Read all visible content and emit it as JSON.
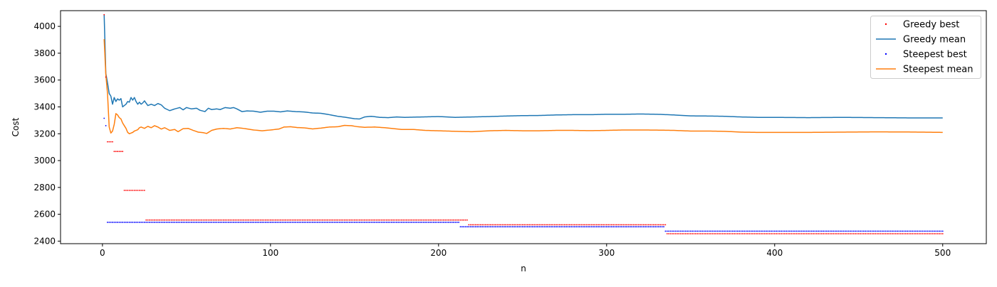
{
  "chart_data": {
    "type": "line",
    "title": "",
    "xlabel": "n",
    "ylabel": "Cost",
    "xlim": [
      -24.95,
      525.95
    ],
    "ylim": [
      2381,
      4117
    ],
    "xticks": [
      0,
      100,
      200,
      300,
      400,
      500
    ],
    "yticks": [
      2400,
      2600,
      2800,
      3000,
      3200,
      3400,
      3600,
      3800,
      4000
    ],
    "grid": false,
    "legend_position": "top-right",
    "x": {
      "start": 1,
      "end": 500,
      "step": 1
    },
    "series": [
      {
        "name": "Greedy best",
        "kind": "scatter",
        "color": "#ff0000",
        "steps": [
          {
            "from": 1,
            "to": 1,
            "y": 4087
          },
          {
            "from": 2,
            "to": 2,
            "y": 3622
          },
          {
            "from": 3,
            "to": 6,
            "y": 3140
          },
          {
            "from": 7,
            "to": 12,
            "y": 3068
          },
          {
            "from": 13,
            "to": 25,
            "y": 2778
          },
          {
            "from": 26,
            "to": 217,
            "y": 2557
          },
          {
            "from": 218,
            "to": 335,
            "y": 2522
          },
          {
            "from": 336,
            "to": 500,
            "y": 2455
          }
        ]
      },
      {
        "name": "Greedy mean",
        "kind": "line",
        "color": "#1f77b4",
        "anchors": [
          [
            1,
            4087
          ],
          [
            2,
            3650
          ],
          [
            3,
            3580
          ],
          [
            4,
            3500
          ],
          [
            5,
            3480
          ],
          [
            6,
            3420
          ],
          [
            7,
            3470
          ],
          [
            8,
            3440
          ],
          [
            9,
            3460
          ],
          [
            10,
            3450
          ],
          [
            11,
            3462
          ],
          [
            12,
            3400
          ],
          [
            14,
            3420
          ],
          [
            15,
            3440
          ],
          [
            16,
            3435
          ],
          [
            17,
            3470
          ],
          [
            18,
            3450
          ],
          [
            19,
            3470
          ],
          [
            20,
            3440
          ],
          [
            21,
            3420
          ],
          [
            22,
            3435
          ],
          [
            23,
            3420
          ],
          [
            24,
            3430
          ],
          [
            25,
            3445
          ],
          [
            27,
            3410
          ],
          [
            29,
            3420
          ],
          [
            31,
            3410
          ],
          [
            33,
            3425
          ],
          [
            35,
            3415
          ],
          [
            37,
            3390
          ],
          [
            40,
            3372
          ],
          [
            43,
            3385
          ],
          [
            46,
            3395
          ],
          [
            48,
            3378
          ],
          [
            50,
            3395
          ],
          [
            53,
            3385
          ],
          [
            56,
            3390
          ],
          [
            58,
            3375
          ],
          [
            61,
            3365
          ],
          [
            63,
            3390
          ],
          [
            65,
            3380
          ],
          [
            68,
            3385
          ],
          [
            70,
            3380
          ],
          [
            73,
            3395
          ],
          [
            76,
            3390
          ],
          [
            78,
            3395
          ],
          [
            80,
            3385
          ],
          [
            83,
            3365
          ],
          [
            86,
            3370
          ],
          [
            90,
            3368
          ],
          [
            94,
            3360
          ],
          [
            98,
            3368
          ],
          [
            102,
            3368
          ],
          [
            106,
            3363
          ],
          [
            110,
            3370
          ],
          [
            115,
            3365
          ],
          [
            120,
            3362
          ],
          [
            125,
            3355
          ],
          [
            130,
            3352
          ],
          [
            135,
            3342
          ],
          [
            140,
            3330
          ],
          [
            145,
            3322
          ],
          [
            150,
            3312
          ],
          [
            153,
            3310
          ],
          [
            156,
            3325
          ],
          [
            160,
            3330
          ],
          [
            165,
            3322
          ],
          [
            170,
            3320
          ],
          [
            175,
            3325
          ],
          [
            180,
            3322
          ],
          [
            190,
            3325
          ],
          [
            200,
            3328
          ],
          [
            210,
            3322
          ],
          [
            220,
            3325
          ],
          [
            230,
            3328
          ],
          [
            240,
            3332
          ],
          [
            250,
            3335
          ],
          [
            260,
            3336
          ],
          [
            270,
            3340
          ],
          [
            280,
            3342
          ],
          [
            290,
            3342
          ],
          [
            300,
            3345
          ],
          [
            310,
            3345
          ],
          [
            320,
            3347
          ],
          [
            330,
            3345
          ],
          [
            340,
            3340
          ],
          [
            350,
            3333
          ],
          [
            360,
            3332
          ],
          [
            370,
            3330
          ],
          [
            380,
            3325
          ],
          [
            390,
            3322
          ],
          [
            400,
            3322
          ],
          [
            420,
            3320
          ],
          [
            440,
            3322
          ],
          [
            460,
            3320
          ],
          [
            480,
            3318
          ],
          [
            500,
            3318
          ]
        ]
      },
      {
        "name": "Steepest best",
        "kind": "scatter",
        "color": "#0000ff",
        "steps": [
          {
            "from": 1,
            "to": 1,
            "y": 3315
          },
          {
            "from": 2,
            "to": 2,
            "y": 3260
          },
          {
            "from": 3,
            "to": 212,
            "y": 2540
          },
          {
            "from": 213,
            "to": 334,
            "y": 2507
          },
          {
            "from": 335,
            "to": 500,
            "y": 2474
          }
        ]
      },
      {
        "name": "Steepest mean",
        "kind": "line",
        "color": "#ff7f0e",
        "anchors": [
          [
            1,
            3905
          ],
          [
            2,
            3640
          ],
          [
            3,
            3500
          ],
          [
            4,
            3250
          ],
          [
            5,
            3205
          ],
          [
            6,
            3220
          ],
          [
            7,
            3270
          ],
          [
            8,
            3350
          ],
          [
            9,
            3340
          ],
          [
            10,
            3320
          ],
          [
            11,
            3310
          ],
          [
            12,
            3280
          ],
          [
            13,
            3260
          ],
          [
            14,
            3240
          ],
          [
            15,
            3210
          ],
          [
            16,
            3200
          ],
          [
            17,
            3205
          ],
          [
            18,
            3210
          ],
          [
            19,
            3220
          ],
          [
            20,
            3225
          ],
          [
            21,
            3230
          ],
          [
            22,
            3245
          ],
          [
            23,
            3250
          ],
          [
            24,
            3245
          ],
          [
            25,
            3240
          ],
          [
            27,
            3255
          ],
          [
            29,
            3245
          ],
          [
            31,
            3260
          ],
          [
            33,
            3250
          ],
          [
            35,
            3235
          ],
          [
            37,
            3245
          ],
          [
            40,
            3225
          ],
          [
            43,
            3232
          ],
          [
            45,
            3215
          ],
          [
            48,
            3238
          ],
          [
            51,
            3240
          ],
          [
            54,
            3225
          ],
          [
            57,
            3212
          ],
          [
            60,
            3208
          ],
          [
            62,
            3202
          ],
          [
            65,
            3225
          ],
          [
            68,
            3235
          ],
          [
            72,
            3240
          ],
          [
            76,
            3235
          ],
          [
            80,
            3245
          ],
          [
            85,
            3238
          ],
          [
            90,
            3228
          ],
          [
            95,
            3222
          ],
          [
            100,
            3228
          ],
          [
            105,
            3235
          ],
          [
            108,
            3250
          ],
          [
            112,
            3252
          ],
          [
            116,
            3246
          ],
          [
            120,
            3244
          ],
          [
            125,
            3236
          ],
          [
            130,
            3242
          ],
          [
            135,
            3250
          ],
          [
            140,
            3252
          ],
          [
            144,
            3262
          ],
          [
            148,
            3260
          ],
          [
            152,
            3252
          ],
          [
            156,
            3248
          ],
          [
            162,
            3250
          ],
          [
            168,
            3245
          ],
          [
            172,
            3240
          ],
          [
            178,
            3232
          ],
          [
            185,
            3232
          ],
          [
            192,
            3225
          ],
          [
            200,
            3222
          ],
          [
            210,
            3218
          ],
          [
            220,
            3215
          ],
          [
            230,
            3222
          ],
          [
            240,
            3225
          ],
          [
            250,
            3222
          ],
          [
            260,
            3222
          ],
          [
            270,
            3225
          ],
          [
            280,
            3225
          ],
          [
            290,
            3223
          ],
          [
            300,
            3225
          ],
          [
            310,
            3228
          ],
          [
            320,
            3228
          ],
          [
            330,
            3227
          ],
          [
            340,
            3225
          ],
          [
            350,
            3220
          ],
          [
            360,
            3220
          ],
          [
            370,
            3218
          ],
          [
            380,
            3212
          ],
          [
            390,
            3210
          ],
          [
            400,
            3210
          ],
          [
            420,
            3210
          ],
          [
            440,
            3212
          ],
          [
            460,
            3214
          ],
          [
            480,
            3213
          ],
          [
            500,
            3210
          ]
        ]
      }
    ]
  }
}
